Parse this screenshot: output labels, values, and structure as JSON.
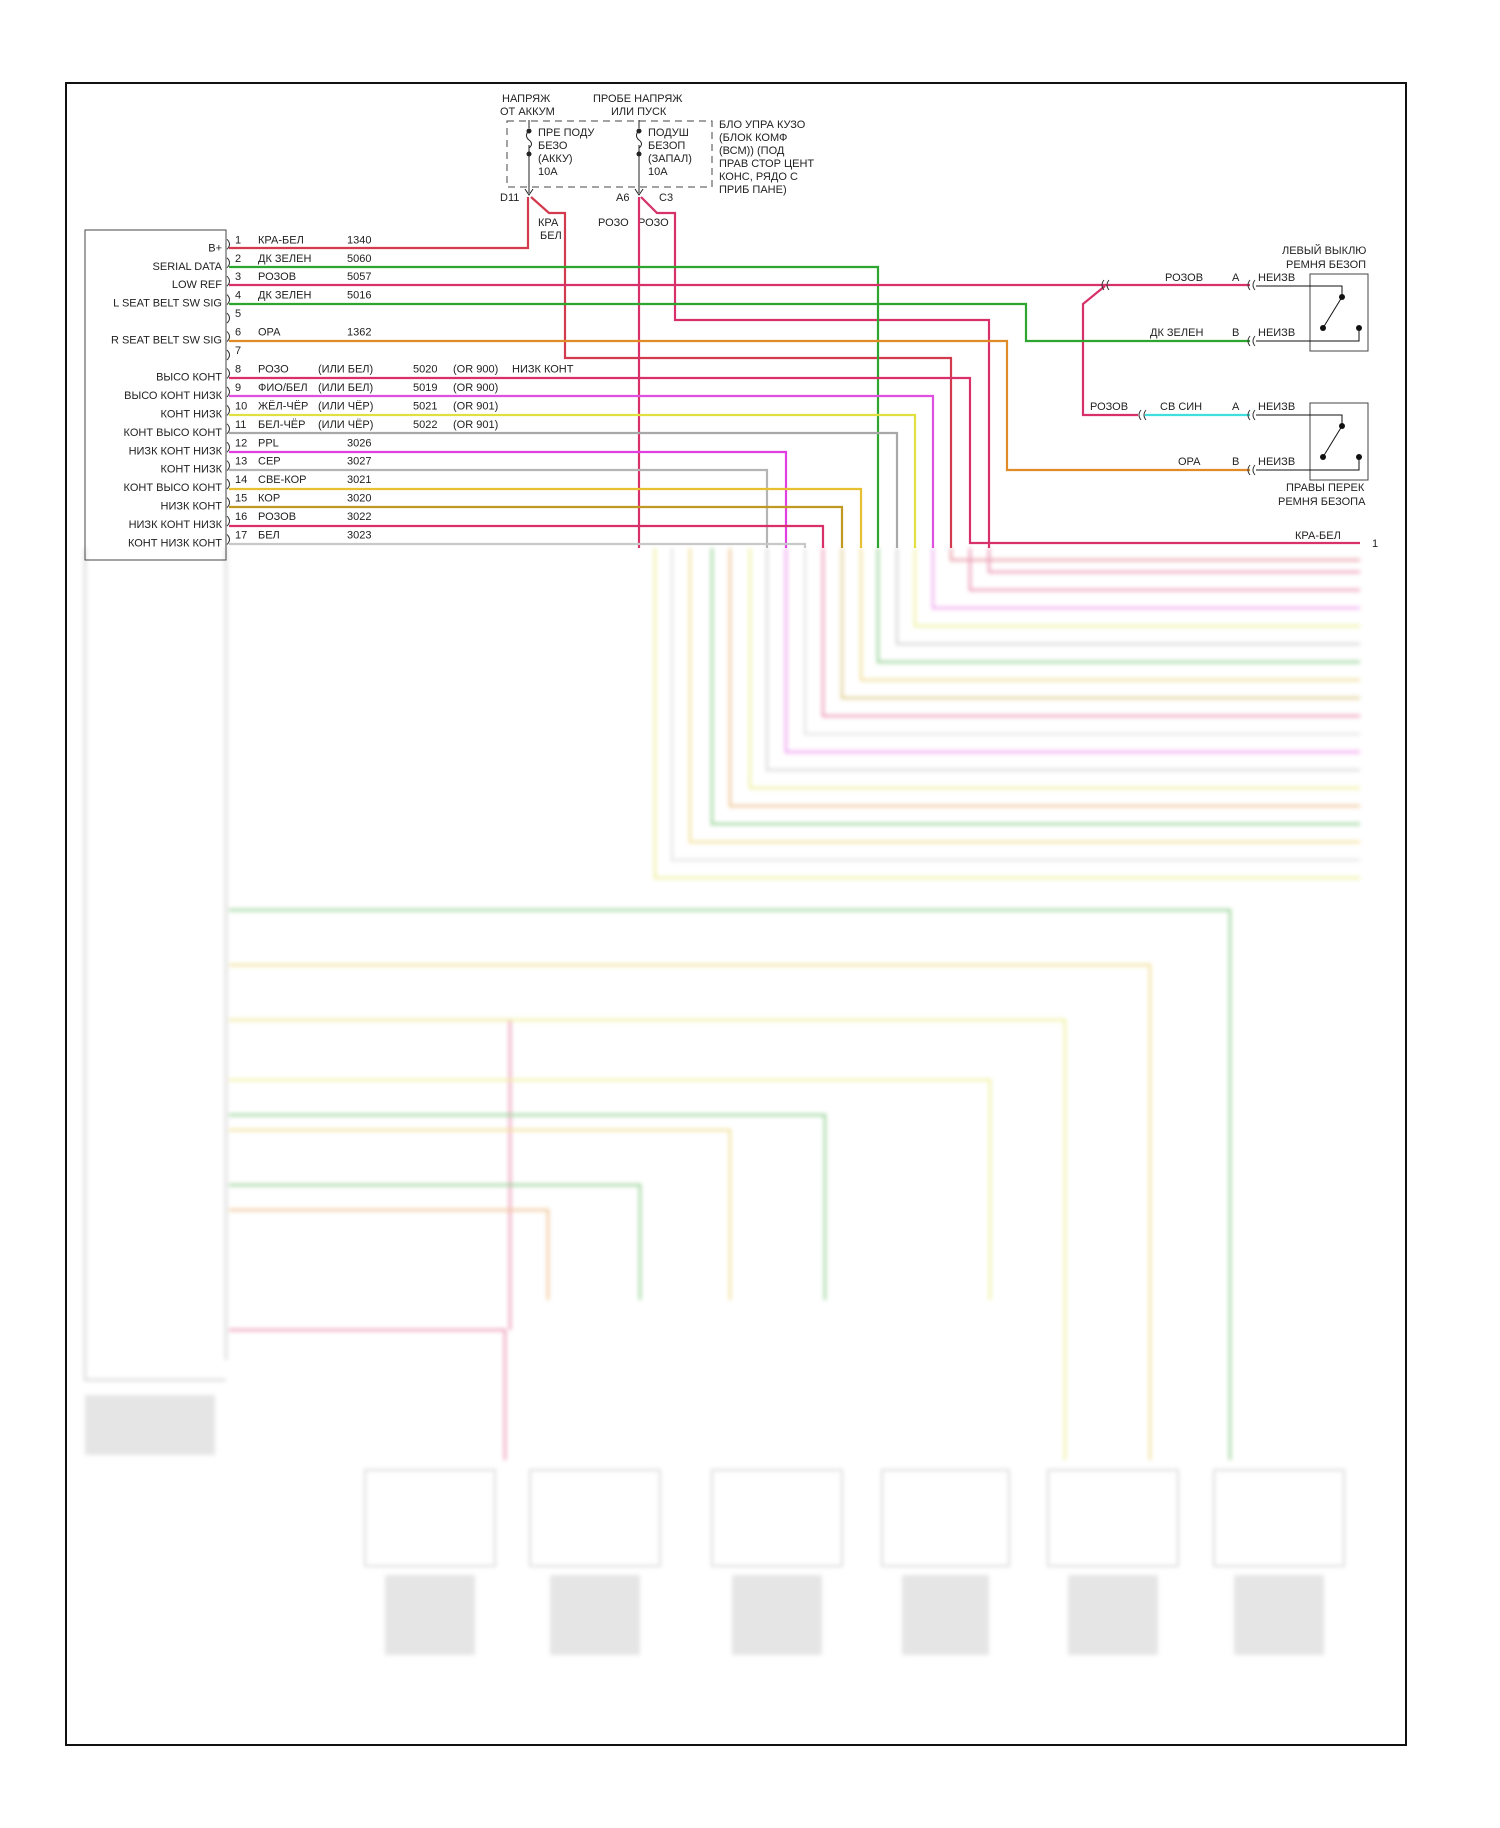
{
  "fuse_block": {
    "batt_feed": [
      "НАПРЯЖ",
      "ОТ АККУМ"
    ],
    "ign_feed": [
      "ПРОБЕ НАПРЯЖ",
      "ИЛИ ПУСК"
    ],
    "fuse1": [
      "ПРЕ ПОДУ",
      "БЕЗО",
      "(АККУ)",
      "10A"
    ],
    "fuse2": [
      "ПОДУШ",
      "БЕЗОП",
      "(ЗАПАЛ)",
      "10A"
    ],
    "module_name": [
      "БЛО УПРА КУЗО",
      "(БЛОК КОМФ",
      "(ВСМ)) (ПОД",
      "ПРАВ СТОР ЦЕНТ",
      "КОНС, РЯДО С",
      "ПРИБ ПАНЕ)"
    ],
    "pins": {
      "d11": "D11",
      "a6": "A6",
      "c3": "C3"
    },
    "wire_labels": {
      "d11_color1": "КРА",
      "d11_color2": "БЕЛ",
      "a6_color": "РОЗО",
      "c3_color": "РОЗО"
    }
  },
  "module_pins": [
    {
      "pin": "1",
      "label": "B+",
      "color": "КРА-БЕЛ",
      "circuit": "1340",
      "hex": "#d23a4e"
    },
    {
      "pin": "2",
      "label": "SERIAL DATA",
      "color": "ДК ЗЕЛЕН",
      "circuit": "5060",
      "hex": "#2ea52e"
    },
    {
      "pin": "3",
      "label": "LOW REF",
      "color": "РОЗОВ",
      "circuit": "5057",
      "hex": "#d8306a"
    },
    {
      "pin": "4",
      "label": "L SEAT BELT SW SIG",
      "color": "ДК ЗЕЛЕН",
      "circuit": "5016",
      "hex": "#2ea52e"
    },
    {
      "pin": "5",
      "label": "",
      "color": "",
      "circuit": "",
      "hex": ""
    },
    {
      "pin": "6",
      "label": "R SEAT BELT SW SIG",
      "color": "ОРА",
      "circuit": "1362",
      "hex": "#e08a28"
    },
    {
      "pin": "7",
      "label": "",
      "color": "",
      "circuit": "",
      "hex": ""
    },
    {
      "pin": "8",
      "label": "ВЫСО КОНТ",
      "color": "РОЗО",
      "alt_color": "(ИЛИ БЕЛ)",
      "overlap": "НИЗК КОНТ",
      "circuit": "5020",
      "alt_circuit": "(OR 900)",
      "hex": "#d8306a"
    },
    {
      "pin": "9",
      "label": "ВЫСО КОНТ НИЗК",
      "color": "ФИО/БЕЛ",
      "alt_color": "(ИЛИ БЕЛ)",
      "circuit": "5019",
      "alt_circuit": "(OR 900)",
      "hex": "#e050e0"
    },
    {
      "pin": "10",
      "label": "КОНТ НИЗК",
      "color": "ЖЁЛ-ЧЁР",
      "alt_color": "(ИЛИ ЧЁР)",
      "circuit": "5021",
      "alt_circuit": "(OR 901)",
      "hex": "#e2e040"
    },
    {
      "pin": "11",
      "label": "КОНТ ВЫСО КОНТ",
      "color": "БЕЛ-ЧЁР",
      "alt_color": "(ИЛИ ЧЁР)",
      "circuit": "5022",
      "alt_circuit": "(OR 901)",
      "hex": "#a8a8a8"
    },
    {
      "pin": "12",
      "label": "НИЗК КОНТ НИЗК",
      "color": "PPL",
      "circuit": "3026",
      "hex": "#e040e0"
    },
    {
      "pin": "13",
      "label": "КОНТ НИЗК",
      "color": "СЕР",
      "circuit": "3027",
      "hex": "#b4b4b4"
    },
    {
      "pin": "14",
      "label": "КОНТ ВЫСО КОНТ",
      "color": "СВЕ-КОР",
      "circuit": "3021",
      "hex": "#e6c030"
    },
    {
      "pin": "15",
      "label": "НИЗК КОНТ",
      "color": "КОР",
      "circuit": "3020",
      "hex": "#c09a20"
    },
    {
      "pin": "16",
      "label": "НИЗК КОНТ НИЗК",
      "color": "РОЗОВ",
      "circuit": "3022",
      "hex": "#d8306a"
    },
    {
      "pin": "17",
      "label": "КОНТ НИЗК КОНТ",
      "color": "БЕЛ",
      "circuit": "3023",
      "hex": "#c8c8c8"
    }
  ],
  "left_switch": {
    "title": [
      "ЛЕВЫЙ ВЫКЛЮ",
      "РЕМНЯ БЕЗОП"
    ],
    "wire_a": "РОЗОВ",
    "pin_a": "A",
    "conn_a": "НЕИЗВ",
    "wire_b": "ДК ЗЕЛЕН",
    "pin_b": "B",
    "conn_b": "НЕИЗВ"
  },
  "right_switch": {
    "title": [
      "ПРАВЫ ПЕРЕК",
      "РЕМНЯ БЕЗОПА"
    ],
    "wire_in": "РОЗОВ",
    "wire_a": "СВ СИН",
    "pin_a": "A",
    "conn_a": "НЕИЗВ",
    "wire_b": "ОРА",
    "pin_b": "B",
    "conn_b": "НЕИЗВ"
  },
  "right_bus": {
    "label": "КРА-БЕЛ",
    "pin": "1"
  },
  "colors": {
    "frame": "#111111",
    "cyan": "#40dede"
  }
}
